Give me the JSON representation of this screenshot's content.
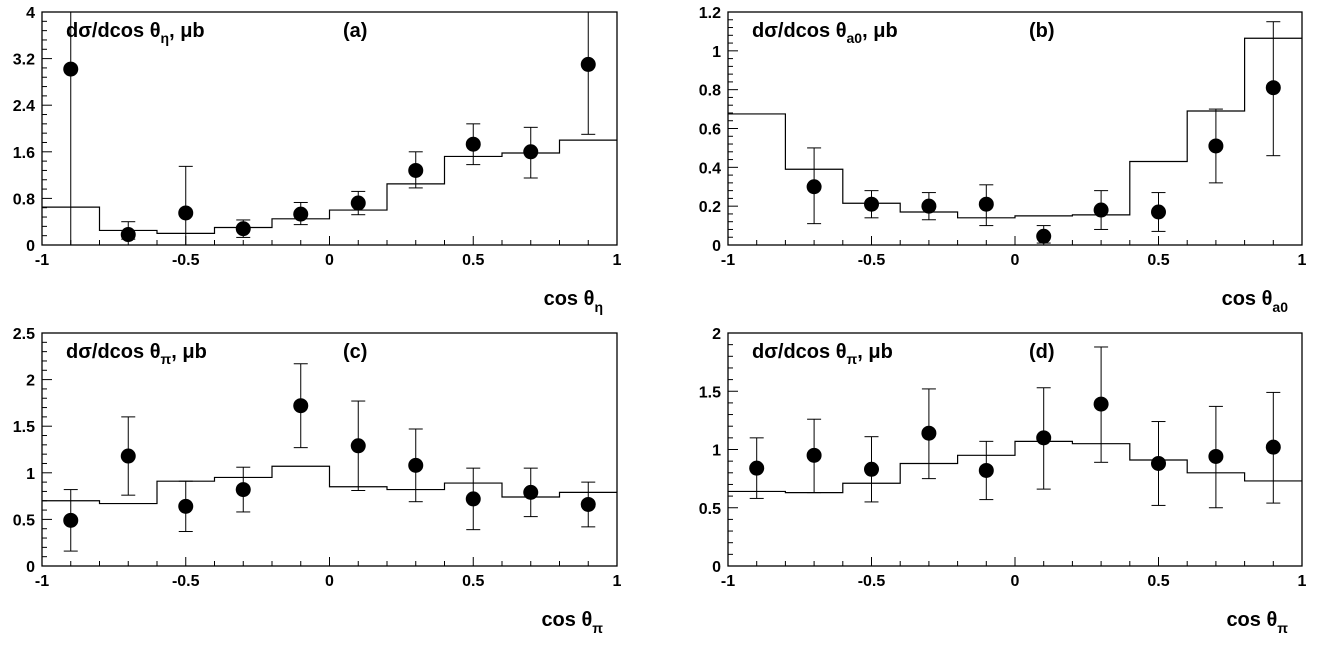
{
  "chart_data": [
    {
      "id": "a",
      "type": "scatter",
      "title": "dσ/dcos θ",
      "title_sub": "η",
      "title_unit": ", μb",
      "panel_label": "(a)",
      "xlabel": "cos θ",
      "xlabel_sub": "η",
      "xlim": [
        -1,
        1
      ],
      "ylim": [
        0,
        4
      ],
      "xticks": [
        "-1",
        "-0.5",
        "0",
        "0.5",
        "1"
      ],
      "xtick_values": [
        -1,
        -0.5,
        0,
        0.5,
        1
      ],
      "yticks": [
        "0",
        "0.8",
        "1.6",
        "2.4",
        "3.2",
        "4"
      ],
      "ytick_values": [
        0,
        0.8,
        1.6,
        2.4,
        3.2,
        4
      ],
      "points": {
        "x": [
          -0.9,
          -0.7,
          -0.5,
          -0.3,
          -0.1,
          0.1,
          0.3,
          0.5,
          0.7,
          0.9
        ],
        "y": [
          3.02,
          0.18,
          0.55,
          0.28,
          0.53,
          0.72,
          1.28,
          1.73,
          1.6,
          3.1
        ],
        "err_lo": [
          3.02,
          0.08,
          0.55,
          0.15,
          0.18,
          0.2,
          0.3,
          0.35,
          0.45,
          1.2
        ],
        "err_hi": [
          3.02,
          0.22,
          0.8,
          0.15,
          0.2,
          0.2,
          0.32,
          0.35,
          0.42,
          0.9
        ]
      },
      "histogram": {
        "edges": [
          -1,
          -0.8,
          -0.6,
          -0.4,
          -0.2,
          0,
          0.2,
          0.4,
          0.6,
          0.8,
          1
        ],
        "values": [
          0.65,
          0.25,
          0.2,
          0.3,
          0.45,
          0.6,
          1.05,
          1.52,
          1.58,
          1.8
        ]
      }
    },
    {
      "id": "b",
      "type": "scatter",
      "title": "dσ/dcos θ",
      "title_sub": "a0",
      "title_unit": ", μb",
      "panel_label": "(b)",
      "xlabel": "cos θ",
      "xlabel_sub": "a0",
      "xlim": [
        -1,
        1
      ],
      "ylim": [
        0,
        1.2
      ],
      "xticks": [
        "-1",
        "-0.5",
        "0",
        "0.5",
        "1"
      ],
      "xtick_values": [
        -1,
        -0.5,
        0,
        0.5,
        1
      ],
      "yticks": [
        "0",
        "0.2",
        "0.4",
        "0.6",
        "0.8",
        "1",
        "1.2"
      ],
      "ytick_values": [
        0,
        0.2,
        0.4,
        0.6,
        0.8,
        1,
        1.2
      ],
      "points": {
        "x": [
          -0.7,
          -0.5,
          -0.3,
          -0.1,
          0.1,
          0.3,
          0.5,
          0.7,
          0.9
        ],
        "y": [
          0.3,
          0.21,
          0.2,
          0.21,
          0.045,
          0.18,
          0.17,
          0.51,
          0.81
        ],
        "err_lo": [
          0.19,
          0.07,
          0.07,
          0.11,
          0.035,
          0.1,
          0.1,
          0.19,
          0.35
        ],
        "err_hi": [
          0.2,
          0.07,
          0.07,
          0.1,
          0.055,
          0.1,
          0.1,
          0.19,
          0.34
        ]
      },
      "histogram": {
        "edges": [
          -1,
          -0.8,
          -0.6,
          -0.4,
          -0.2,
          0,
          0.2,
          0.4,
          0.6,
          0.8,
          1
        ],
        "values": [
          0.675,
          0.39,
          0.215,
          0.17,
          0.14,
          0.15,
          0.155,
          0.43,
          0.69,
          1.065
        ]
      }
    },
    {
      "id": "c",
      "type": "scatter",
      "title": "dσ/dcos θ",
      "title_sub": "π",
      "title_unit": ", μb",
      "panel_label": "(c)",
      "xlabel": "cos θ",
      "xlabel_sub": "π",
      "xlim": [
        -1,
        1
      ],
      "ylim": [
        0,
        2.5
      ],
      "xticks": [
        "-1",
        "-0.5",
        "0",
        "0.5",
        "1"
      ],
      "xtick_values": [
        -1,
        -0.5,
        0,
        0.5,
        1
      ],
      "yticks": [
        "0",
        "0.5",
        "1",
        "1.5",
        "2",
        "2.5"
      ],
      "ytick_values": [
        0,
        0.5,
        1,
        1.5,
        2,
        2.5
      ],
      "points": {
        "x": [
          -0.9,
          -0.7,
          -0.5,
          -0.3,
          -0.1,
          0.1,
          0.3,
          0.5,
          0.7,
          0.9
        ],
        "y": [
          0.49,
          1.18,
          0.64,
          0.82,
          1.72,
          1.29,
          1.08,
          0.72,
          0.79,
          0.66
        ],
        "err_lo": [
          0.33,
          0.42,
          0.27,
          0.24,
          0.45,
          0.48,
          0.39,
          0.33,
          0.26,
          0.24
        ],
        "err_hi": [
          0.33,
          0.42,
          0.27,
          0.24,
          0.45,
          0.48,
          0.39,
          0.33,
          0.26,
          0.24
        ]
      },
      "histogram": {
        "edges": [
          -1,
          -0.8,
          -0.6,
          -0.4,
          -0.2,
          0,
          0.2,
          0.4,
          0.6,
          0.8,
          1
        ],
        "values": [
          0.7,
          0.67,
          0.91,
          0.95,
          1.07,
          0.85,
          0.82,
          0.89,
          0.74,
          0.79
        ]
      }
    },
    {
      "id": "d",
      "type": "scatter",
      "title": "dσ/dcos θ",
      "title_sub": "π",
      "title_unit": ", μb",
      "panel_label": "(d)",
      "xlabel": "cos θ",
      "xlabel_sub": "π",
      "xlim": [
        -1,
        1
      ],
      "ylim": [
        0,
        2
      ],
      "xticks": [
        "-1",
        "-0.5",
        "0",
        "0.5",
        "1"
      ],
      "xtick_values": [
        -1,
        -0.5,
        0,
        0.5,
        1
      ],
      "yticks": [
        "0",
        "0.5",
        "1",
        "1.5",
        "2"
      ],
      "ytick_values": [
        0,
        0.5,
        1,
        1.5,
        2
      ],
      "points": {
        "x": [
          -0.9,
          -0.7,
          -0.5,
          -0.3,
          -0.1,
          0.1,
          0.3,
          0.5,
          0.7,
          0.9
        ],
        "y": [
          0.84,
          0.95,
          0.83,
          1.14,
          0.82,
          1.1,
          1.39,
          0.88,
          0.94,
          1.02
        ],
        "err_lo": [
          0.26,
          0.32,
          0.28,
          0.39,
          0.25,
          0.44,
          0.5,
          0.36,
          0.44,
          0.48
        ],
        "err_hi": [
          0.26,
          0.31,
          0.28,
          0.38,
          0.25,
          0.43,
          0.49,
          0.36,
          0.43,
          0.47
        ]
      },
      "histogram": {
        "edges": [
          -1,
          -0.8,
          -0.6,
          -0.4,
          -0.2,
          0,
          0.2,
          0.4,
          0.6,
          0.8,
          1
        ],
        "values": [
          0.64,
          0.63,
          0.71,
          0.88,
          0.95,
          1.07,
          1.05,
          0.91,
          0.8,
          0.73
        ]
      }
    }
  ]
}
